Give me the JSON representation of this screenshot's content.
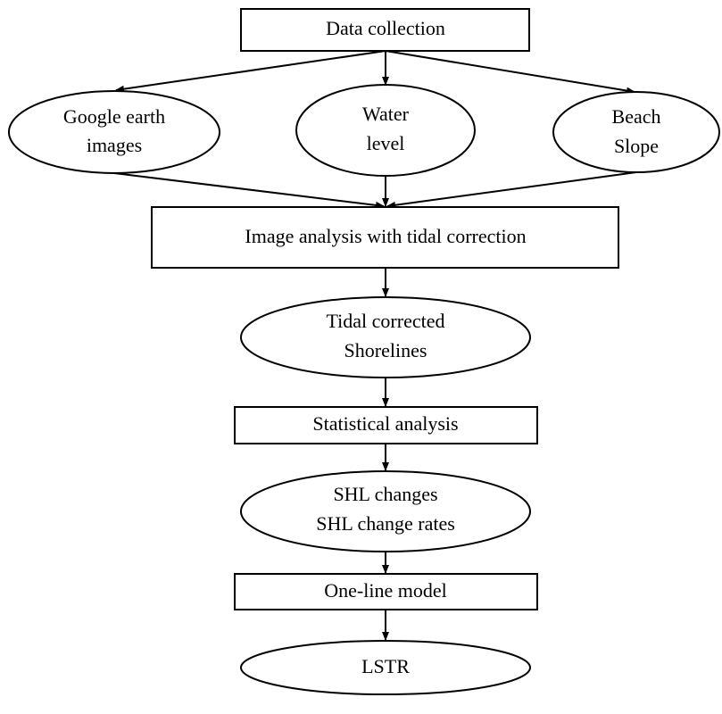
{
  "nodes": [
    {
      "lines": [
        "Data collection"
      ]
    },
    {
      "lines": [
        "Google earth",
        "images"
      ]
    },
    {
      "lines": [
        "Water",
        "level"
      ]
    },
    {
      "lines": [
        "Beach",
        "Slope"
      ]
    },
    {
      "lines": [
        "Image analysis with tidal correction"
      ]
    },
    {
      "lines": [
        "Tidal corrected",
        "Shorelines"
      ]
    },
    {
      "lines": [
        "Statistical analysis"
      ]
    },
    {
      "lines": [
        "SHL changes",
        "SHL change rates"
      ]
    },
    {
      "lines": [
        "One-line model"
      ]
    },
    {
      "lines": [
        "LSTR"
      ]
    }
  ]
}
